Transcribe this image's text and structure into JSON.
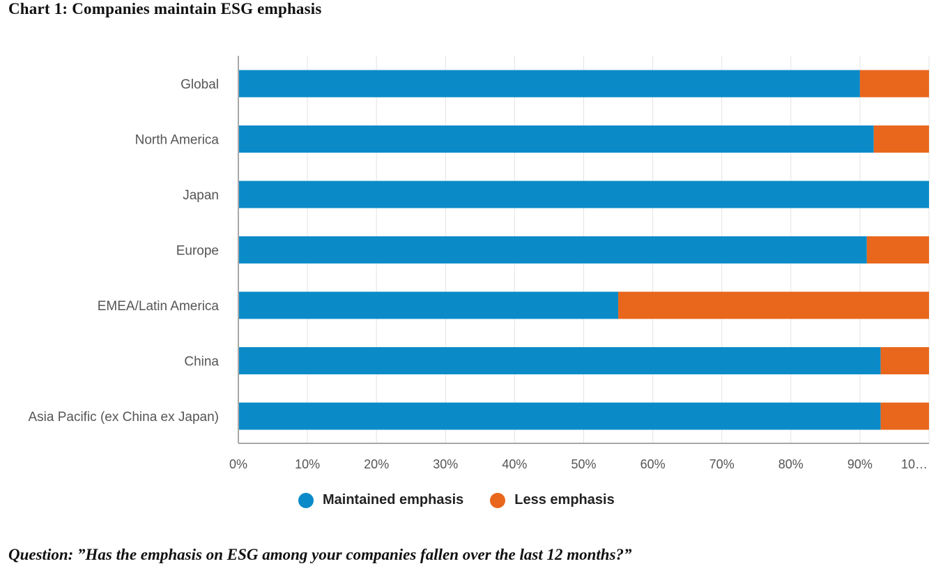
{
  "title": "Chart 1: Companies maintain ESG emphasis",
  "question": "Question: ”Has the emphasis on ESG among your companies fallen over the last 12 months?”",
  "colors": {
    "maintained": "#0a8bc8",
    "less": "#e8671c",
    "grid": "#e3e3e3",
    "axis": "#a8a8a8"
  },
  "chart_data": {
    "type": "bar",
    "orientation": "horizontal",
    "stacked": true,
    "categories": [
      "Global",
      "North America",
      "Japan",
      "Europe",
      "EMEA/Latin America",
      "China",
      "Asia Pacific (ex China ex Japan)"
    ],
    "series": [
      {
        "name": "Maintained emphasis",
        "values": [
          90,
          92,
          100,
          91,
          55,
          93,
          93
        ]
      },
      {
        "name": "Less emphasis",
        "values": [
          10,
          8,
          0,
          9,
          45,
          7,
          7
        ]
      }
    ],
    "xlim": [
      0,
      100
    ],
    "x_ticks": [
      "0%",
      "10%",
      "20%",
      "30%",
      "40%",
      "50%",
      "60%",
      "70%",
      "80%",
      "90%",
      "10…"
    ],
    "grid": true,
    "legend_position": "bottom"
  }
}
